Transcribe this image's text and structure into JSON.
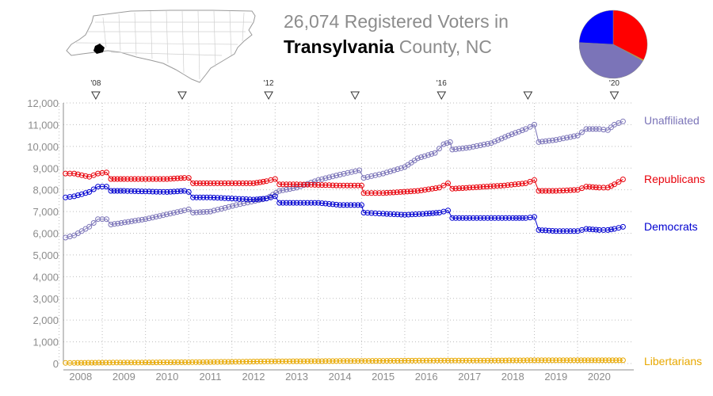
{
  "header": {
    "count": "26,074",
    "line1_rest": "Registered Voters in",
    "county": "Transylvania",
    "line2_rest": "County, NC"
  },
  "colors": {
    "unaffiliated": "#7b74b8",
    "republicans": "#e8000a",
    "democrats": "#0000d0",
    "libertarians": "#e8a800",
    "axis": "#8c8c8c",
    "grid": "#bdbdbd"
  },
  "map": {
    "icon": "north-carolina-county-map",
    "highlight": "transylvania-county"
  },
  "pie": {
    "slices": [
      {
        "name": "Republicans",
        "value": 8480,
        "color": "#ff0000"
      },
      {
        "name": "Libertarians",
        "value": 150,
        "color": "#e8a800"
      },
      {
        "name": "Unaffiliated",
        "value": 11150,
        "color": "#7b74b8"
      },
      {
        "name": "Democrats",
        "value": 6294,
        "color": "#0000ff"
      }
    ]
  },
  "chart_data": {
    "type": "line",
    "xlim": [
      2007.6,
      2020.8
    ],
    "ylim": [
      0,
      12000
    ],
    "yticks": [
      0,
      1000,
      2000,
      3000,
      4000,
      5000,
      6000,
      7000,
      8000,
      9000,
      10000,
      11000,
      12000
    ],
    "ytick_labels": [
      "0",
      "1,000",
      "2,000",
      "3,000",
      "4,000",
      "5,000",
      "6,000",
      "7,000",
      "8,000",
      "9,000",
      "10,000",
      "11,000",
      "12,000"
    ],
    "xtick_labels": [
      "2008",
      "2009",
      "2010",
      "2011",
      "2012",
      "2013",
      "2014",
      "2015",
      "2016",
      "2017",
      "2018",
      "2019",
      "2020"
    ],
    "xtick_positions": [
      2008.0,
      2009.0,
      2010.0,
      2011.0,
      2012.0,
      2013.0,
      2014.0,
      2015.0,
      2016.0,
      2017.0,
      2018.0,
      2019.0,
      2020.0
    ],
    "grid": true,
    "elections": [
      {
        "label": "'08",
        "x": 2008.35
      },
      {
        "label": "",
        "x": 2010.35
      },
      {
        "label": "'12",
        "x": 2012.35
      },
      {
        "label": "",
        "x": 2014.35
      },
      {
        "label": "'16",
        "x": 2016.35
      },
      {
        "label": "",
        "x": 2018.35
      },
      {
        "label": "'20",
        "x": 2020.35
      }
    ],
    "series": [
      {
        "name": "Unaffiliated",
        "color": "#7b74b8",
        "points": [
          [
            2007.65,
            5800
          ],
          [
            2007.85,
            5900
          ],
          [
            2008.2,
            6300
          ],
          [
            2008.4,
            6650
          ],
          [
            2008.6,
            6650
          ],
          [
            2008.7,
            6400
          ],
          [
            2009.5,
            6650
          ],
          [
            2010.4,
            7050
          ],
          [
            2010.5,
            7100
          ],
          [
            2010.6,
            6950
          ],
          [
            2011.0,
            7000
          ],
          [
            2011.6,
            7300
          ],
          [
            2012.3,
            7600
          ],
          [
            2012.6,
            7950
          ],
          [
            2013.0,
            8100
          ],
          [
            2013.5,
            8450
          ],
          [
            2014.0,
            8700
          ],
          [
            2014.45,
            8900
          ],
          [
            2014.55,
            8550
          ],
          [
            2015.0,
            8750
          ],
          [
            2015.5,
            9050
          ],
          [
            2015.8,
            9450
          ],
          [
            2016.2,
            9700
          ],
          [
            2016.4,
            10100
          ],
          [
            2016.55,
            10200
          ],
          [
            2016.6,
            9850
          ],
          [
            2017.0,
            9950
          ],
          [
            2017.5,
            10150
          ],
          [
            2017.9,
            10500
          ],
          [
            2018.3,
            10800
          ],
          [
            2018.5,
            11000
          ],
          [
            2018.6,
            10200
          ],
          [
            2019.0,
            10300
          ],
          [
            2019.5,
            10500
          ],
          [
            2019.7,
            10800
          ],
          [
            2020.0,
            10800
          ],
          [
            2020.2,
            10750
          ],
          [
            2020.35,
            11000
          ],
          [
            2020.55,
            11150
          ]
        ]
      },
      {
        "name": "Republicans",
        "color": "#e8000a",
        "points": [
          [
            2007.65,
            8750
          ],
          [
            2007.85,
            8750
          ],
          [
            2008.2,
            8600
          ],
          [
            2008.4,
            8750
          ],
          [
            2008.6,
            8800
          ],
          [
            2008.7,
            8500
          ],
          [
            2009.0,
            8500
          ],
          [
            2010.0,
            8500
          ],
          [
            2010.4,
            8550
          ],
          [
            2010.5,
            8550
          ],
          [
            2010.6,
            8300
          ],
          [
            2011.0,
            8300
          ],
          [
            2012.0,
            8300
          ],
          [
            2012.3,
            8400
          ],
          [
            2012.5,
            8500
          ],
          [
            2012.6,
            8250
          ],
          [
            2013.0,
            8250
          ],
          [
            2014.0,
            8200
          ],
          [
            2014.5,
            8200
          ],
          [
            2014.55,
            7850
          ],
          [
            2015.0,
            7850
          ],
          [
            2015.8,
            7950
          ],
          [
            2016.3,
            8100
          ],
          [
            2016.5,
            8300
          ],
          [
            2016.6,
            8050
          ],
          [
            2017.0,
            8100
          ],
          [
            2017.8,
            8200
          ],
          [
            2018.3,
            8300
          ],
          [
            2018.5,
            8450
          ],
          [
            2018.6,
            7950
          ],
          [
            2019.0,
            7950
          ],
          [
            2019.5,
            8000
          ],
          [
            2019.7,
            8150
          ],
          [
            2020.0,
            8100
          ],
          [
            2020.2,
            8100
          ],
          [
            2020.35,
            8250
          ],
          [
            2020.55,
            8480
          ]
        ]
      },
      {
        "name": "Democrats",
        "color": "#0000d0",
        "points": [
          [
            2007.65,
            7650
          ],
          [
            2007.85,
            7700
          ],
          [
            2008.2,
            7900
          ],
          [
            2008.4,
            8150
          ],
          [
            2008.6,
            8150
          ],
          [
            2008.7,
            7950
          ],
          [
            2009.0,
            7950
          ],
          [
            2010.0,
            7900
          ],
          [
            2010.4,
            7950
          ],
          [
            2010.5,
            7900
          ],
          [
            2010.6,
            7650
          ],
          [
            2011.0,
            7650
          ],
          [
            2011.5,
            7600
          ],
          [
            2012.0,
            7550
          ],
          [
            2012.3,
            7600
          ],
          [
            2012.5,
            7700
          ],
          [
            2012.6,
            7400
          ],
          [
            2013.0,
            7400
          ],
          [
            2013.5,
            7400
          ],
          [
            2014.0,
            7300
          ],
          [
            2014.5,
            7300
          ],
          [
            2014.55,
            6950
          ],
          [
            2015.0,
            6900
          ],
          [
            2015.5,
            6850
          ],
          [
            2016.0,
            6900
          ],
          [
            2016.3,
            6950
          ],
          [
            2016.5,
            7050
          ],
          [
            2016.6,
            6700
          ],
          [
            2017.0,
            6700
          ],
          [
            2018.0,
            6700
          ],
          [
            2018.3,
            6700
          ],
          [
            2018.5,
            6750
          ],
          [
            2018.6,
            6150
          ],
          [
            2019.0,
            6100
          ],
          [
            2019.5,
            6100
          ],
          [
            2019.7,
            6200
          ],
          [
            2020.0,
            6150
          ],
          [
            2020.2,
            6150
          ],
          [
            2020.35,
            6200
          ],
          [
            2020.55,
            6294
          ]
        ]
      },
      {
        "name": "Libertarians",
        "color": "#e8a800",
        "points": [
          [
            2007.65,
            30
          ],
          [
            2007.85,
            30
          ],
          [
            2008.5,
            40
          ],
          [
            2009.5,
            50
          ],
          [
            2010.5,
            60
          ],
          [
            2011.5,
            80
          ],
          [
            2012.5,
            100
          ],
          [
            2013.5,
            110
          ],
          [
            2014.5,
            120
          ],
          [
            2015.5,
            130
          ],
          [
            2016.5,
            140
          ],
          [
            2017.5,
            140
          ],
          [
            2018.5,
            150
          ],
          [
            2019.5,
            150
          ],
          [
            2020.55,
            150
          ]
        ]
      }
    ]
  }
}
